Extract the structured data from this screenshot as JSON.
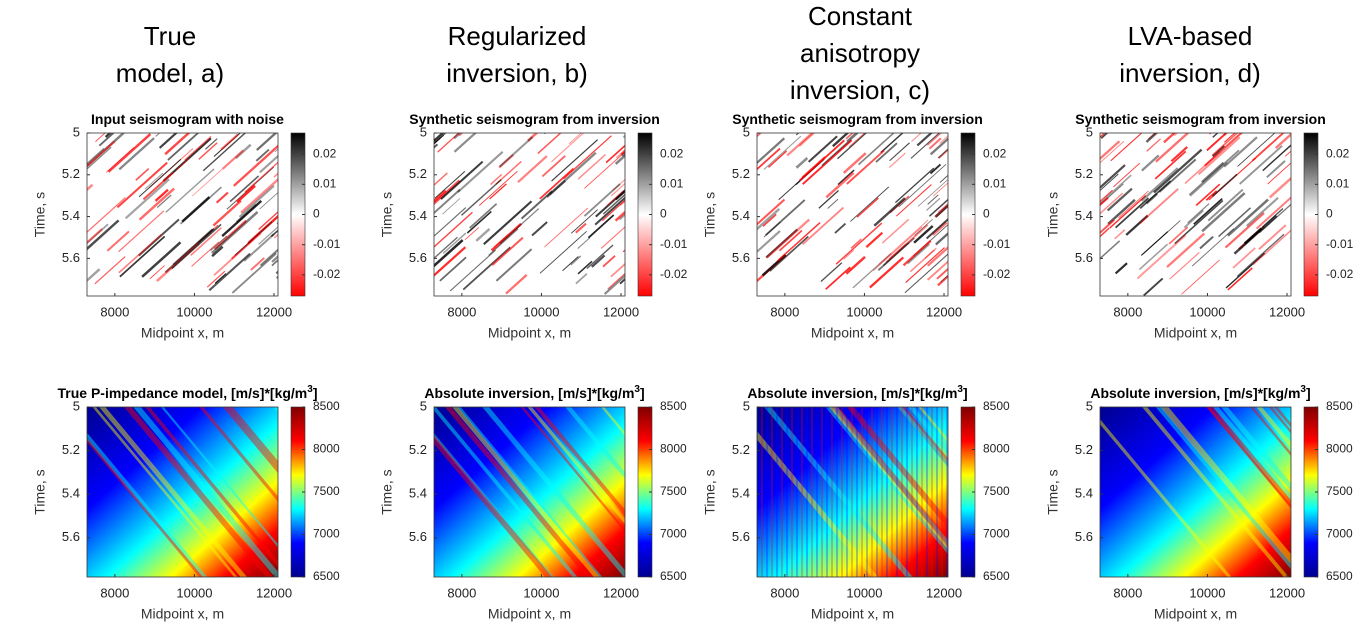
{
  "columns": [
    [
      "True",
      "model, a)"
    ],
    [
      "Regularized",
      "inversion, b)"
    ],
    [
      "Constant",
      "anisotropy",
      "inversion, c)"
    ],
    [
      "LVA-based",
      "inversion, d)"
    ]
  ],
  "chart_data": [
    {
      "type": "heatmap",
      "title": "Input seismogram with noise",
      "xlabel": "Midpoint x, m",
      "ylabel": "Time, s",
      "xlim": [
        7300,
        12100
      ],
      "xticks": [
        8000,
        10000,
        12000
      ],
      "ylim": [
        5,
        5.78
      ],
      "yticks": [
        5,
        5.2,
        5.4,
        5.6
      ],
      "clim": [
        -0.027,
        0.027
      ],
      "cticks": [
        0.02,
        0.01,
        0,
        -0.01,
        -0.02
      ],
      "colormap": [
        "#ff0000",
        "#ffffff",
        "#000000"
      ]
    },
    {
      "type": "heatmap",
      "title": "Synthetic seismogram from inversion",
      "xlabel": "Midpoint x, m",
      "ylabel": "Time, s",
      "xlim": [
        7300,
        12100
      ],
      "xticks": [
        8000,
        10000,
        12000
      ],
      "ylim": [
        5,
        5.78
      ],
      "yticks": [
        5,
        5.2,
        5.4,
        5.6
      ],
      "clim": [
        -0.027,
        0.027
      ],
      "cticks": [
        0.02,
        0.01,
        0,
        -0.01,
        -0.02
      ],
      "colormap": [
        "#ff0000",
        "#ffffff",
        "#000000"
      ]
    },
    {
      "type": "heatmap",
      "title": "Synthetic seismogram from inversion",
      "xlabel": "Midpoint x, m",
      "ylabel": "Time, s",
      "xlim": [
        7300,
        12100
      ],
      "xticks": [
        8000,
        10000,
        12000
      ],
      "ylim": [
        5,
        5.78
      ],
      "yticks": [
        5,
        5.2,
        5.4,
        5.6
      ],
      "clim": [
        -0.027,
        0.027
      ],
      "cticks": [
        0.02,
        0.01,
        0,
        -0.01,
        -0.02
      ],
      "colormap": [
        "#ff0000",
        "#ffffff",
        "#000000"
      ]
    },
    {
      "type": "heatmap",
      "title": "Synthetic seismogram from inversion",
      "xlabel": "Midpoint x, m",
      "ylabel": "Time, s",
      "xlim": [
        7300,
        12100
      ],
      "xticks": [
        8000,
        10000,
        12000
      ],
      "ylim": [
        5,
        5.78
      ],
      "yticks": [
        5,
        5.2,
        5.4,
        5.6
      ],
      "clim": [
        -0.027,
        0.027
      ],
      "cticks": [
        0.02,
        0.01,
        0,
        -0.01,
        -0.02
      ],
      "colormap": [
        "#ff0000",
        "#ffffff",
        "#000000"
      ]
    },
    {
      "type": "heatmap",
      "title": "True P-impedance model, [m/s]*[kg/m",
      "title_sup": "3",
      "title_end": "]",
      "xlabel": "Midpoint x, m",
      "ylabel": "Time, s",
      "xlim": [
        7300,
        12100
      ],
      "xticks": [
        8000,
        10000,
        12000
      ],
      "ylim": [
        5,
        5.78
      ],
      "yticks": [
        5,
        5.2,
        5.4,
        5.6
      ],
      "clim": [
        6500,
        8500
      ],
      "cticks": [
        8500,
        8000,
        7500,
        7000,
        6500
      ],
      "colormap": [
        "#00008f",
        "#0000ff",
        "#00ffff",
        "#ffff00",
        "#ff0000",
        "#800000"
      ]
    },
    {
      "type": "heatmap",
      "title": "Absolute inversion, [m/s]*[kg/m",
      "title_sup": "3",
      "title_end": "]",
      "xlabel": "Midpoint x, m",
      "ylabel": "Time, s",
      "xlim": [
        7300,
        12100
      ],
      "xticks": [
        8000,
        10000,
        12000
      ],
      "ylim": [
        5,
        5.78
      ],
      "yticks": [
        5,
        5.2,
        5.4,
        5.6
      ],
      "clim": [
        6500,
        8500
      ],
      "cticks": [
        8500,
        8000,
        7500,
        7000,
        6500
      ],
      "colormap": [
        "#00008f",
        "#0000ff",
        "#00ffff",
        "#ffff00",
        "#ff0000",
        "#800000"
      ]
    },
    {
      "type": "heatmap",
      "title": "Absolute inversion, [m/s]*[kg/m",
      "title_sup": "3",
      "title_end": "]",
      "xlabel": "Midpoint x, m",
      "ylabel": "Time, s",
      "xlim": [
        7300,
        12100
      ],
      "xticks": [
        8000,
        10000,
        12000
      ],
      "ylim": [
        5,
        5.78
      ],
      "yticks": [
        5,
        5.2,
        5.4,
        5.6
      ],
      "clim": [
        6500,
        8500
      ],
      "cticks": [
        8500,
        8000,
        7500,
        7000,
        6500
      ],
      "colormap": [
        "#00008f",
        "#0000ff",
        "#00ffff",
        "#ffff00",
        "#ff0000",
        "#800000"
      ]
    },
    {
      "type": "heatmap",
      "title": "Absolute inversion, [m/s]*[kg/m",
      "title_sup": "3",
      "title_end": "]",
      "xlabel": "Midpoint x, m",
      "ylabel": "Time, s",
      "xlim": [
        7300,
        12100
      ],
      "xticks": [
        8000,
        10000,
        12000
      ],
      "ylim": [
        5,
        5.78
      ],
      "yticks": [
        5,
        5.2,
        5.4,
        5.6
      ],
      "clim": [
        6500,
        8500
      ],
      "cticks": [
        8500,
        8000,
        7500,
        7000,
        6500
      ],
      "colormap": [
        "#00008f",
        "#0000ff",
        "#00ffff",
        "#ffff00",
        "#ff0000",
        "#800000"
      ]
    }
  ]
}
